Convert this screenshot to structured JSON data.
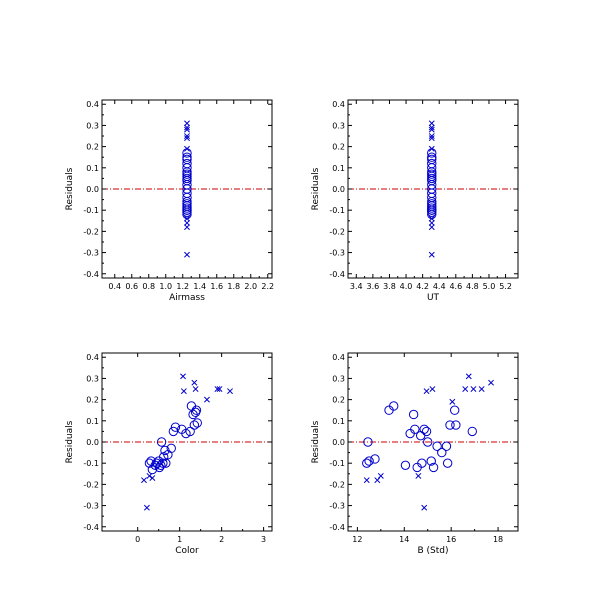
{
  "colors": {
    "marker": "#0000cc",
    "zero_line": "#cc0000",
    "frame": "#000000"
  },
  "chart_data": [
    {
      "type": "scatter",
      "xlabel": "Airmass",
      "ylabel": "Residuals",
      "xlim": [
        0.25,
        2.25
      ],
      "ylim": [
        -0.42,
        0.42
      ],
      "xticks": [
        "0.4",
        "0.6",
        "0.8",
        "1.0",
        "1.2",
        "1.4",
        "1.6",
        "1.8",
        "2.0",
        "2.2"
      ],
      "xtick_values": [
        0.4,
        0.6,
        0.8,
        1.0,
        1.2,
        1.4,
        1.6,
        1.8,
        2.0,
        2.2
      ],
      "yticks": [
        "-0.4",
        "-0.3",
        "-0.2",
        "-0.1",
        "0.0",
        "0.1",
        "0.2",
        "0.3",
        "0.4"
      ],
      "ytick_values": [
        -0.4,
        -0.3,
        -0.2,
        -0.1,
        0.0,
        0.1,
        0.2,
        0.3,
        0.4
      ],
      "zero_line": true,
      "series": [
        {
          "marker": "circle",
          "points": [
            [
              1.25,
              -0.1
            ],
            [
              1.25,
              -0.09
            ],
            [
              1.25,
              -0.08
            ],
            [
              1.25,
              -0.11
            ],
            [
              1.25,
              -0.12
            ],
            [
              1.25,
              -0.06
            ],
            [
              1.25,
              -0.04
            ],
            [
              1.25,
              -0.02
            ],
            [
              1.25,
              0.0
            ],
            [
              1.25,
              0.02
            ],
            [
              1.25,
              0.04
            ],
            [
              1.25,
              0.05
            ],
            [
              1.25,
              0.06
            ],
            [
              1.25,
              0.07
            ],
            [
              1.25,
              0.08
            ],
            [
              1.25,
              0.1
            ],
            [
              1.25,
              0.12
            ],
            [
              1.25,
              0.14
            ],
            [
              1.25,
              0.15
            ],
            [
              1.25,
              0.17
            ],
            [
              1.25,
              -0.1
            ],
            [
              1.25,
              -0.07
            ]
          ]
        },
        {
          "marker": "cross",
          "points": [
            [
              1.25,
              -0.31
            ],
            [
              1.25,
              -0.18
            ],
            [
              1.25,
              -0.16
            ],
            [
              1.25,
              0.19
            ],
            [
              1.25,
              0.24
            ],
            [
              1.25,
              0.25
            ],
            [
              1.25,
              0.28
            ],
            [
              1.25,
              0.29
            ],
            [
              1.25,
              0.31
            ],
            [
              1.25,
              -0.14
            ]
          ]
        }
      ]
    },
    {
      "type": "scatter",
      "xlabel": "UT",
      "ylabel": "Residuals",
      "xlim": [
        3.3,
        5.35
      ],
      "ylim": [
        -0.42,
        0.42
      ],
      "xticks": [
        "3.4",
        "3.6",
        "3.8",
        "4.0",
        "4.2",
        "4.4",
        "4.6",
        "4.8",
        "5.0",
        "5.2"
      ],
      "xtick_values": [
        3.4,
        3.6,
        3.8,
        4.0,
        4.2,
        4.4,
        4.6,
        4.8,
        5.0,
        5.2
      ],
      "yticks": [
        "-0.4",
        "-0.3",
        "-0.2",
        "-0.1",
        "0.0",
        "0.1",
        "0.2",
        "0.3",
        "0.4"
      ],
      "ytick_values": [
        -0.4,
        -0.3,
        -0.2,
        -0.1,
        0.0,
        0.1,
        0.2,
        0.3,
        0.4
      ],
      "zero_line": true,
      "series": [
        {
          "marker": "circle",
          "points": [
            [
              4.31,
              -0.1
            ],
            [
              4.31,
              -0.09
            ],
            [
              4.31,
              -0.08
            ],
            [
              4.31,
              -0.11
            ],
            [
              4.31,
              -0.12
            ],
            [
              4.31,
              -0.06
            ],
            [
              4.31,
              -0.04
            ],
            [
              4.31,
              -0.02
            ],
            [
              4.31,
              0.0
            ],
            [
              4.31,
              0.02
            ],
            [
              4.31,
              0.04
            ],
            [
              4.31,
              0.05
            ],
            [
              4.31,
              0.06
            ],
            [
              4.31,
              0.07
            ],
            [
              4.31,
              0.08
            ],
            [
              4.31,
              0.1
            ],
            [
              4.31,
              0.12
            ],
            [
              4.31,
              0.14
            ],
            [
              4.31,
              0.15
            ],
            [
              4.31,
              0.17
            ],
            [
              4.31,
              -0.1
            ],
            [
              4.31,
              -0.07
            ]
          ]
        },
        {
          "marker": "cross",
          "points": [
            [
              4.31,
              -0.31
            ],
            [
              4.31,
              -0.18
            ],
            [
              4.31,
              -0.16
            ],
            [
              4.31,
              0.19
            ],
            [
              4.31,
              0.24
            ],
            [
              4.31,
              0.25
            ],
            [
              4.31,
              0.28
            ],
            [
              4.31,
              0.29
            ],
            [
              4.31,
              0.31
            ],
            [
              4.31,
              -0.14
            ]
          ]
        }
      ]
    },
    {
      "type": "scatter",
      "xlabel": "Color",
      "ylabel": "Residuals",
      "xlim": [
        -0.85,
        3.2
      ],
      "ylim": [
        -0.42,
        0.42
      ],
      "xticks": [
        "0",
        "1",
        "2",
        "3"
      ],
      "xtick_values": [
        0,
        1,
        2,
        3
      ],
      "yticks": [
        "-0.4",
        "-0.3",
        "-0.2",
        "-0.1",
        "0.0",
        "0.1",
        "0.2",
        "0.3",
        "0.4"
      ],
      "ytick_values": [
        -0.4,
        -0.3,
        -0.2,
        -0.1,
        0.0,
        0.1,
        0.2,
        0.3,
        0.4
      ],
      "zero_line": true,
      "series": [
        {
          "marker": "circle",
          "points": [
            [
              0.28,
              -0.1
            ],
            [
              0.32,
              -0.09
            ],
            [
              0.35,
              -0.13
            ],
            [
              0.42,
              -0.11
            ],
            [
              0.45,
              -0.1
            ],
            [
              0.5,
              -0.09
            ],
            [
              0.52,
              -0.12
            ],
            [
              0.55,
              -0.11
            ],
            [
              0.57,
              0.0
            ],
            [
              0.6,
              -0.1
            ],
            [
              0.62,
              -0.07
            ],
            [
              0.65,
              -0.04
            ],
            [
              0.67,
              -0.1
            ],
            [
              0.72,
              -0.06
            ],
            [
              0.8,
              -0.03
            ],
            [
              0.85,
              0.05
            ],
            [
              0.9,
              0.07
            ],
            [
              1.05,
              0.06
            ],
            [
              1.15,
              0.04
            ],
            [
              1.25,
              0.05
            ],
            [
              1.28,
              0.17
            ],
            [
              1.32,
              0.13
            ],
            [
              1.35,
              0.08
            ],
            [
              1.38,
              0.14
            ],
            [
              1.4,
              0.15
            ],
            [
              1.42,
              0.09
            ]
          ]
        },
        {
          "marker": "cross",
          "points": [
            [
              0.15,
              -0.18
            ],
            [
              0.22,
              -0.31
            ],
            [
              0.28,
              -0.16
            ],
            [
              0.35,
              -0.17
            ],
            [
              1.08,
              0.31
            ],
            [
              1.1,
              0.24
            ],
            [
              1.35,
              0.28
            ],
            [
              1.38,
              0.25
            ],
            [
              1.65,
              0.2
            ],
            [
              1.9,
              0.25
            ],
            [
              1.95,
              0.25
            ],
            [
              2.2,
              0.24
            ]
          ]
        }
      ]
    },
    {
      "type": "scatter",
      "xlabel": "B (Std)",
      "ylabel": "Residuals",
      "xlim": [
        11.6,
        18.85
      ],
      "ylim": [
        -0.42,
        0.42
      ],
      "xticks": [
        "12",
        "14",
        "16",
        "18"
      ],
      "xtick_values": [
        12,
        14,
        16,
        18
      ],
      "yticks": [
        "-0.4",
        "-0.3",
        "-0.2",
        "-0.1",
        "0.0",
        "0.1",
        "0.2",
        "0.3",
        "0.4"
      ],
      "ytick_values": [
        -0.4,
        -0.3,
        -0.2,
        -0.1,
        0.0,
        0.1,
        0.2,
        0.3,
        0.4
      ],
      "zero_line": true,
      "series": [
        {
          "marker": "circle",
          "points": [
            [
              12.4,
              -0.1
            ],
            [
              12.45,
              0.0
            ],
            [
              12.5,
              -0.09
            ],
            [
              12.75,
              -0.08
            ],
            [
              13.35,
              0.15
            ],
            [
              13.55,
              0.17
            ],
            [
              14.05,
              -0.11
            ],
            [
              14.25,
              0.04
            ],
            [
              14.4,
              0.13
            ],
            [
              14.45,
              0.06
            ],
            [
              14.55,
              -0.12
            ],
            [
              14.7,
              0.03
            ],
            [
              14.75,
              -0.1
            ],
            [
              14.85,
              0.06
            ],
            [
              14.95,
              0.05
            ],
            [
              15.0,
              0.0
            ],
            [
              15.15,
              -0.09
            ],
            [
              15.25,
              -0.12
            ],
            [
              15.4,
              -0.02
            ],
            [
              15.6,
              -0.05
            ],
            [
              15.8,
              -0.02
            ],
            [
              15.85,
              -0.1
            ],
            [
              15.95,
              0.08
            ],
            [
              16.15,
              0.15
            ],
            [
              16.2,
              0.08
            ],
            [
              16.9,
              0.05
            ]
          ]
        },
        {
          "marker": "cross",
          "points": [
            [
              12.4,
              -0.18
            ],
            [
              12.85,
              -0.18
            ],
            [
              13.0,
              -0.16
            ],
            [
              14.6,
              -0.16
            ],
            [
              14.85,
              -0.31
            ],
            [
              14.95,
              0.24
            ],
            [
              15.2,
              0.25
            ],
            [
              16.05,
              0.19
            ],
            [
              16.6,
              0.25
            ],
            [
              16.75,
              0.31
            ],
            [
              16.95,
              0.25
            ],
            [
              17.3,
              0.25
            ],
            [
              17.7,
              0.28
            ]
          ]
        }
      ]
    }
  ]
}
